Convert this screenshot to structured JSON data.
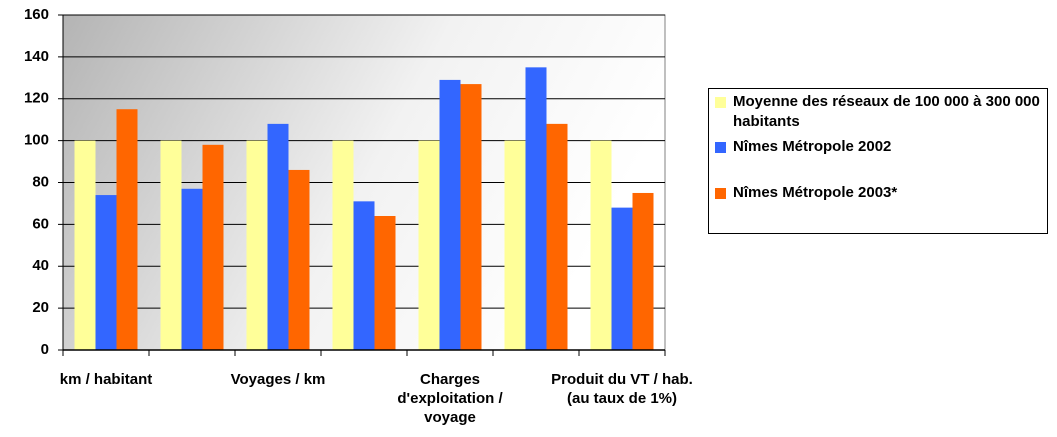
{
  "chart_data": {
    "type": "bar",
    "categories": [
      "km / habitant",
      null,
      "Voyages / km",
      null,
      "Charges d'exploitation / voyage",
      null,
      "Produit du VT / hab. (au taux de 1%)"
    ],
    "series": [
      {
        "name": "Moyenne des réseaux de 100 000 à 300 000 habitants",
        "color": "#ffff99",
        "values": [
          100,
          100,
          100,
          100,
          100,
          100,
          100
        ]
      },
      {
        "name": "Nîmes Métropole 2002",
        "color": "#3366ff",
        "values": [
          74,
          77,
          108,
          71,
          129,
          135,
          68
        ]
      },
      {
        "name": "Nîmes Métropole 2003*",
        "color": "#ff6600",
        "values": [
          115,
          98,
          86,
          64,
          127,
          108,
          75
        ]
      }
    ],
    "ylim": [
      0,
      160
    ],
    "yticks": [
      0,
      20,
      40,
      60,
      80,
      100,
      120,
      140,
      160
    ],
    "grid": true
  }
}
